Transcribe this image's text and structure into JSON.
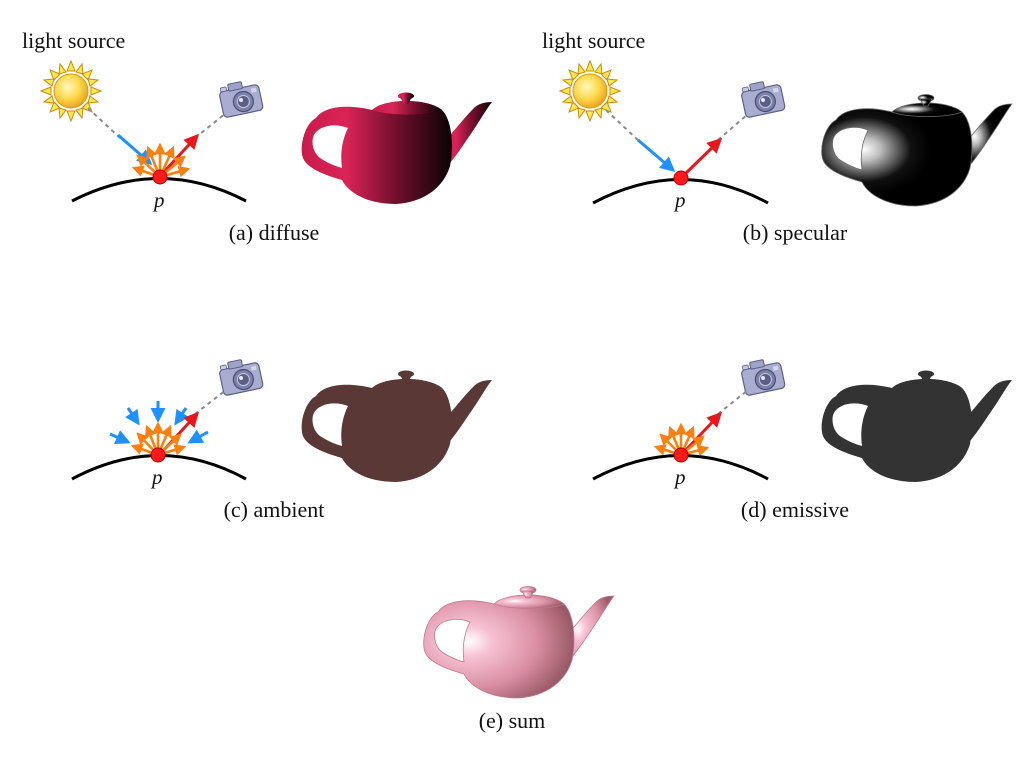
{
  "labels": {
    "light_source_a": "light source",
    "light_source_b": "light source",
    "point_a": "p",
    "point_b": "p",
    "point_c": "p",
    "point_d": "p"
  },
  "captions": {
    "a": "(a) diffuse",
    "b": "(b) specular",
    "c": "(c) ambient",
    "d": "(d) emissive",
    "e": "(e) sum"
  },
  "colors": {
    "incoming_light": "#1e90ff",
    "reflected_to_camera": "#e8171c",
    "scattered": "#ff7f0e",
    "point": "#ff1a1a",
    "dashed_ray": "#8a8a8a",
    "sun_core": "#ffd84d",
    "sun_rays": "#ffe84a",
    "camera_body": "#9ea4c6",
    "teapot_diffuse": "#b0173f",
    "teapot_specular": "#0a0a0a",
    "teapot_ambient": "#5a3836",
    "teapot_emissive": "#333333",
    "teapot_sum": "#d98ea3"
  },
  "icons": {
    "light": "sun-icon",
    "camera": "camera-icon",
    "object": "teapot-icon"
  }
}
